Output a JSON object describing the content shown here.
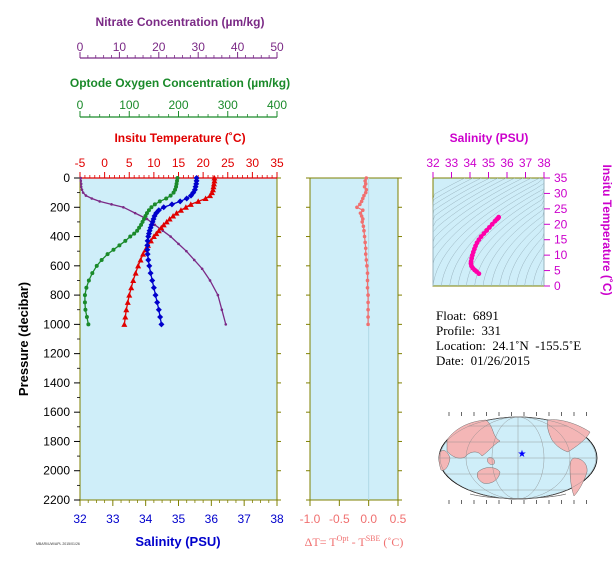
{
  "chart_data": [
    {
      "type": "line",
      "name": "profile",
      "ylabel": "Pressure (decibar)",
      "ylim": [
        2200,
        0
      ],
      "yticks": [
        0,
        200,
        400,
        600,
        800,
        1000,
        1200,
        1400,
        1600,
        1800,
        2000,
        2200
      ],
      "axes": {
        "nitrate": {
          "label": "Nitrate Concentration (µm/kg)",
          "range": [
            0,
            50
          ],
          "ticks": [
            0,
            10,
            20,
            30,
            40,
            50
          ],
          "color": "#7b2a86"
        },
        "oxygen": {
          "label": "Optode Oxygen Concentration (µm/kg)",
          "range": [
            0,
            400
          ],
          "ticks": [
            0,
            100,
            200,
            300,
            400
          ],
          "color": "#1a8a2a"
        },
        "temperature": {
          "label": "Insitu Temperature (˚C)",
          "range": [
            -5,
            35
          ],
          "ticks": [
            -5,
            0,
            5,
            10,
            15,
            20,
            25,
            30,
            35
          ],
          "color": "#e00000"
        },
        "salinity": {
          "label": "Salinity (PSU)",
          "range": [
            32,
            38
          ],
          "ticks": [
            32,
            33,
            34,
            35,
            36,
            37,
            38
          ],
          "color": "#0000cc"
        }
      },
      "series": [
        {
          "name": "Insitu Temperature",
          "axis": "temperature",
          "color": "#e00000",
          "marker": "triangle",
          "points": [
            [
              22.3,
              0
            ],
            [
              22.3,
              20
            ],
            [
              22.2,
              40
            ],
            [
              22.1,
              60
            ],
            [
              22.0,
              80
            ],
            [
              21.8,
              100
            ],
            [
              21.4,
              120
            ],
            [
              20.5,
              140
            ],
            [
              19.0,
              160
            ],
            [
              17.5,
              180
            ],
            [
              16.5,
              200
            ],
            [
              15.5,
              220
            ],
            [
              14.6,
              240
            ],
            [
              13.9,
              260
            ],
            [
              13.2,
              280
            ],
            [
              12.6,
              300
            ],
            [
              12.0,
              320
            ],
            [
              11.5,
              340
            ],
            [
              11.0,
              360
            ],
            [
              10.5,
              380
            ],
            [
              10.0,
              400
            ],
            [
              9.4,
              430
            ],
            [
              8.8,
              460
            ],
            [
              8.3,
              490
            ],
            [
              7.8,
              520
            ],
            [
              7.3,
              560
            ],
            [
              6.8,
              600
            ],
            [
              6.3,
              650
            ],
            [
              5.8,
              700
            ],
            [
              5.4,
              750
            ],
            [
              5.0,
              800
            ],
            [
              4.7,
              850
            ],
            [
              4.4,
              900
            ],
            [
              4.2,
              950
            ],
            [
              4.0,
              1000
            ]
          ]
        },
        {
          "name": "Salinity",
          "axis": "salinity",
          "color": "#0000cc",
          "marker": "diamond",
          "points": [
            [
              35.55,
              0
            ],
            [
              35.55,
              20
            ],
            [
              35.54,
              40
            ],
            [
              35.52,
              60
            ],
            [
              35.5,
              80
            ],
            [
              35.45,
              100
            ],
            [
              35.38,
              120
            ],
            [
              35.25,
              140
            ],
            [
              35.05,
              160
            ],
            [
              34.8,
              180
            ],
            [
              34.55,
              200
            ],
            [
              34.4,
              220
            ],
            [
              34.32,
              240
            ],
            [
              34.27,
              260
            ],
            [
              34.24,
              280
            ],
            [
              34.21,
              300
            ],
            [
              34.18,
              320
            ],
            [
              34.15,
              340
            ],
            [
              34.12,
              360
            ],
            [
              34.1,
              380
            ],
            [
              34.08,
              400
            ],
            [
              34.06,
              430
            ],
            [
              34.05,
              460
            ],
            [
              34.05,
              490
            ],
            [
              34.06,
              520
            ],
            [
              34.08,
              560
            ],
            [
              34.11,
              600
            ],
            [
              34.15,
              650
            ],
            [
              34.2,
              700
            ],
            [
              34.25,
              750
            ],
            [
              34.3,
              800
            ],
            [
              34.35,
              850
            ],
            [
              34.4,
              900
            ],
            [
              34.44,
              950
            ],
            [
              34.48,
              1000
            ]
          ]
        },
        {
          "name": "Optode Oxygen",
          "axis": "oxygen",
          "color": "#1a8a2a",
          "marker": "circle",
          "points": [
            [
              198,
              0
            ],
            [
              197,
              20
            ],
            [
              196,
              40
            ],
            [
              195,
              60
            ],
            [
              193,
              80
            ],
            [
              190,
              100
            ],
            [
              184,
              120
            ],
            [
              175,
              140
            ],
            [
              162,
              160
            ],
            [
              152,
              180
            ],
            [
              145,
              200
            ],
            [
              140,
              220
            ],
            [
              136,
              240
            ],
            [
              133,
              260
            ],
            [
              130,
              280
            ],
            [
              127,
              300
            ],
            [
              124,
              320
            ],
            [
              120,
              340
            ],
            [
              116,
              360
            ],
            [
              110,
              380
            ],
            [
              102,
              400
            ],
            [
              92,
              430
            ],
            [
              80,
              460
            ],
            [
              68,
              490
            ],
            [
              56,
              520
            ],
            [
              44,
              560
            ],
            [
              34,
              600
            ],
            [
              25,
              650
            ],
            [
              18,
              700
            ],
            [
              13,
              750
            ],
            [
              10,
              800
            ],
            [
              10,
              850
            ],
            [
              11,
              900
            ],
            [
              14,
              950
            ],
            [
              17,
              1000
            ]
          ]
        },
        {
          "name": "Nitrate",
          "axis": "nitrate",
          "color": "#7b2a86",
          "marker": "dot",
          "points": [
            [
              0.2,
              0
            ],
            [
              0.2,
              20
            ],
            [
              0.3,
              40
            ],
            [
              0.3,
              60
            ],
            [
              0.5,
              80
            ],
            [
              0.8,
              100
            ],
            [
              1.5,
              120
            ],
            [
              3,
              140
            ],
            [
              5,
              160
            ],
            [
              8,
              180
            ],
            [
              11,
              200
            ],
            [
              14,
              240
            ],
            [
              17,
              280
            ],
            [
              19,
              320
            ],
            [
              21,
              360
            ],
            [
              23,
              400
            ],
            [
              25,
              450
            ],
            [
              27,
              500
            ],
            [
              29,
              560
            ],
            [
              31,
              620
            ],
            [
              33,
              700
            ],
            [
              35,
              800
            ],
            [
              36,
              900
            ],
            [
              37,
              1000
            ]
          ]
        }
      ]
    },
    {
      "type": "line",
      "name": "delta-t",
      "xlabel_main": "ΔT= T",
      "xlabel_sup1": "Opt",
      "xlabel_mid": " - T",
      "xlabel_sup2": "SBE",
      "xlabel_end": " (˚C)",
      "xlim": [
        -1.0,
        0.5
      ],
      "xticks": [
        -1.0,
        -0.5,
        0.0,
        0.5
      ],
      "xtick_labels": [
        "-1.0",
        "-0.5",
        "0.0",
        "0.5"
      ],
      "ylim": [
        2200,
        0
      ],
      "color": "#f07070",
      "points": [
        [
          -0.04,
          0
        ],
        [
          -0.06,
          20
        ],
        [
          -0.05,
          40
        ],
        [
          -0.07,
          60
        ],
        [
          -0.04,
          80
        ],
        [
          -0.05,
          100
        ],
        [
          -0.08,
          120
        ],
        [
          -0.1,
          140
        ],
        [
          -0.12,
          160
        ],
        [
          -0.15,
          180
        ],
        [
          -0.2,
          200
        ],
        [
          -0.1,
          220
        ],
        [
          -0.14,
          240
        ],
        [
          -0.12,
          260
        ],
        [
          -0.1,
          280
        ],
        [
          -0.11,
          300
        ],
        [
          -0.09,
          330
        ],
        [
          -0.08,
          360
        ],
        [
          -0.07,
          400
        ],
        [
          -0.06,
          440
        ],
        [
          -0.05,
          480
        ],
        [
          -0.05,
          520
        ],
        [
          -0.04,
          560
        ],
        [
          -0.03,
          600
        ],
        [
          -0.02,
          650
        ],
        [
          -0.02,
          700
        ],
        [
          -0.02,
          750
        ],
        [
          -0.01,
          800
        ],
        [
          -0.01,
          850
        ],
        [
          -0.01,
          900
        ],
        [
          -0.01,
          950
        ],
        [
          -0.01,
          1000
        ]
      ]
    },
    {
      "type": "scatter",
      "name": "ts-diagram",
      "title": "Salinity (PSU)",
      "xlim": [
        32,
        38
      ],
      "xticks": [
        32,
        33,
        34,
        35,
        36,
        37,
        38
      ],
      "ylabel": "Insitu Temperature (˚C)",
      "ylim": [
        0,
        35
      ],
      "yticks": [
        0,
        5,
        10,
        15,
        20,
        25,
        30,
        35
      ],
      "color": "#ff00aa",
      "points": [
        [
          35.55,
          22.3
        ],
        [
          35.52,
          22.0
        ],
        [
          35.45,
          21.6
        ],
        [
          35.35,
          21.0
        ],
        [
          35.2,
          20.0
        ],
        [
          35.05,
          19.0
        ],
        [
          34.9,
          18.0
        ],
        [
          34.75,
          17.0
        ],
        [
          34.6,
          16.0
        ],
        [
          34.48,
          15.0
        ],
        [
          34.38,
          14.0
        ],
        [
          34.3,
          13.0
        ],
        [
          34.24,
          12.0
        ],
        [
          34.18,
          11.0
        ],
        [
          34.13,
          10.0
        ],
        [
          34.09,
          9.0
        ],
        [
          34.06,
          8.0
        ],
        [
          34.05,
          7.3
        ],
        [
          34.08,
          6.5
        ],
        [
          34.15,
          5.8
        ],
        [
          34.25,
          5.2
        ],
        [
          34.35,
          4.7
        ],
        [
          34.48,
          4.0
        ]
      ]
    }
  ],
  "info": {
    "float_label": "Float:",
    "float_value": "6891",
    "profile_label": "Profile:",
    "profile_value": "331",
    "location_label": "Location:",
    "location_value": "24.1˚N  -155.5˚E",
    "date_label": "Date:",
    "date_value": "01/26/2015"
  },
  "map": {
    "marker_lon": -155.5,
    "marker_lat": 24.1
  },
  "footer_text": "MBARI/UW/APL 2015/01/26",
  "colors": {
    "panel_bg": "#cfeef9",
    "nitrate": "#7b2a86",
    "oxygen": "#1a8a2a",
    "temperature": "#e00000",
    "salinity": "#0000cc",
    "delta": "#f07070",
    "ts": "#ff00aa",
    "ts_axis": "#cc00cc",
    "frame_olive": "#7f8000"
  }
}
